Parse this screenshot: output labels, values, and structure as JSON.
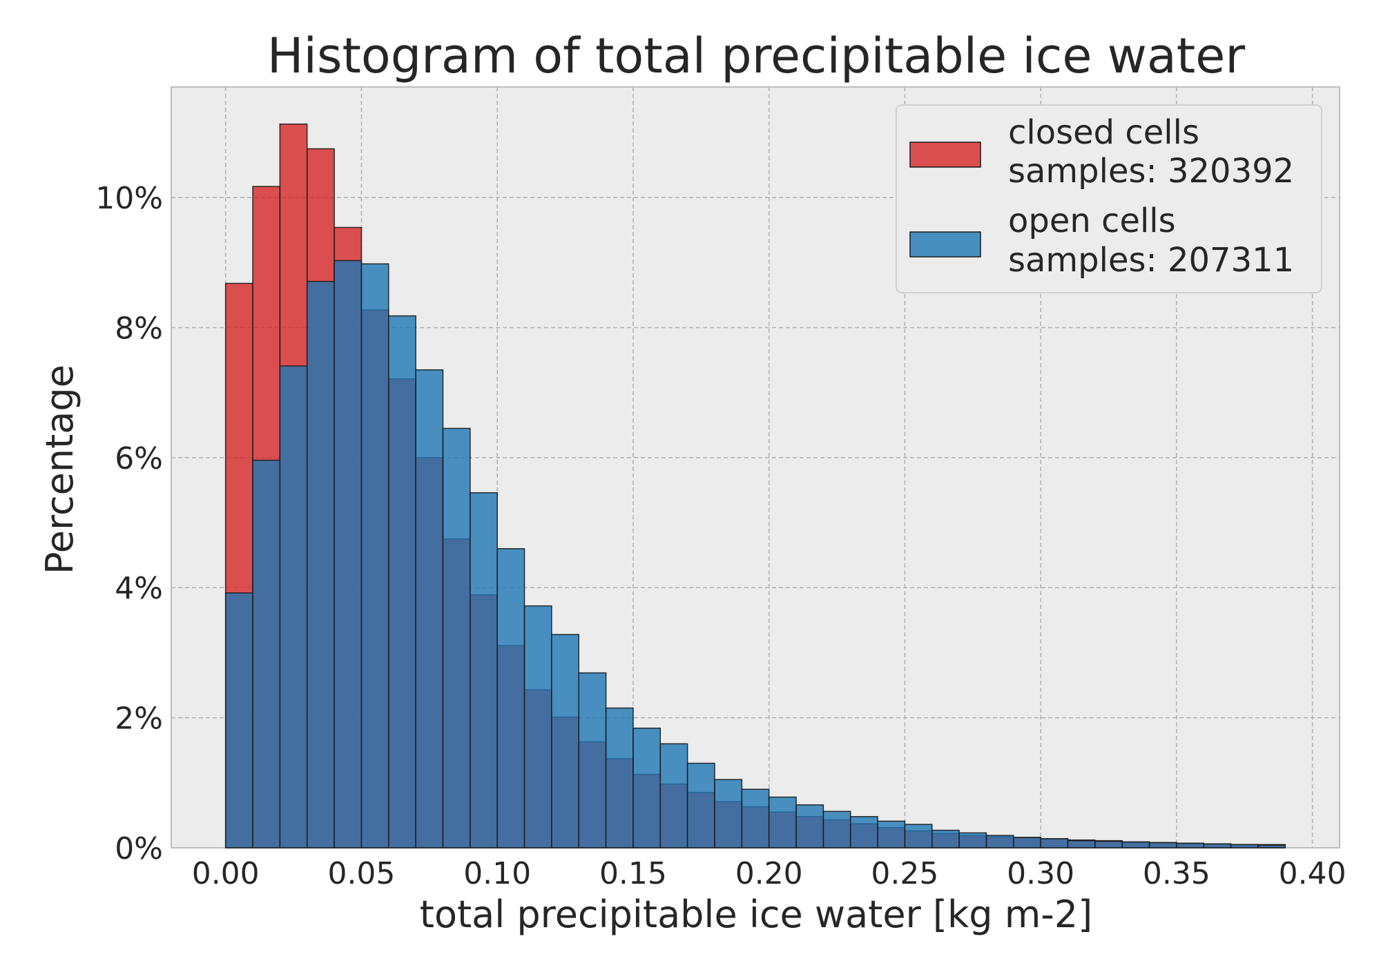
{
  "chart_data": {
    "type": "bar",
    "title": "Histogram of total precipitable ice water",
    "xlabel": "total precipitable ice water [kg m-2]",
    "ylabel": "Percentage",
    "xlim": [
      -0.02,
      0.41
    ],
    "ylim": [
      0,
      11.7
    ],
    "grid": true,
    "legend_position": "top-right",
    "bin_width": 0.01,
    "bins_start": [
      0.0,
      0.01,
      0.02,
      0.03,
      0.04,
      0.05,
      0.06,
      0.07,
      0.08,
      0.09,
      0.1,
      0.11,
      0.12,
      0.13,
      0.14,
      0.15,
      0.16,
      0.17,
      0.18,
      0.19,
      0.2,
      0.21,
      0.22,
      0.23,
      0.24,
      0.25,
      0.26,
      0.27,
      0.28,
      0.29,
      0.3,
      0.31,
      0.32,
      0.33,
      0.34,
      0.35,
      0.36,
      0.37,
      0.38
    ],
    "x_ticks": [
      {
        "value": 0.0,
        "label": "0.00"
      },
      {
        "value": 0.05,
        "label": "0.05"
      },
      {
        "value": 0.1,
        "label": "0.10"
      },
      {
        "value": 0.15,
        "label": "0.15"
      },
      {
        "value": 0.2,
        "label": "0.20"
      },
      {
        "value": 0.25,
        "label": "0.25"
      },
      {
        "value": 0.3,
        "label": "0.30"
      },
      {
        "value": 0.35,
        "label": "0.35"
      },
      {
        "value": 0.4,
        "label": "0.40"
      }
    ],
    "y_ticks": [
      {
        "value": 0,
        "label": "0%"
      },
      {
        "value": 2,
        "label": "2%"
      },
      {
        "value": 4,
        "label": "4%"
      },
      {
        "value": 6,
        "label": "6%"
      },
      {
        "value": 8,
        "label": "8%"
      },
      {
        "value": 10,
        "label": "10%"
      }
    ],
    "series": [
      {
        "name": "closed cells",
        "samples_label": "samples: 320392",
        "color": "#d62728",
        "values": [
          8.68,
          10.17,
          11.13,
          10.75,
          9.54,
          8.27,
          7.21,
          6.0,
          4.75,
          3.89,
          3.11,
          2.43,
          2.01,
          1.63,
          1.37,
          1.13,
          0.98,
          0.85,
          0.71,
          0.63,
          0.55,
          0.48,
          0.43,
          0.37,
          0.31,
          0.26,
          0.22,
          0.19,
          0.17,
          0.16,
          0.14,
          0.12,
          0.11,
          0.09,
          0.08,
          0.07,
          0.06,
          0.05,
          0.05
        ]
      },
      {
        "name": "open cells",
        "samples_label": "samples: 207311",
        "color": "#1f77b4",
        "values": [
          3.92,
          5.96,
          7.41,
          8.71,
          9.03,
          8.98,
          8.18,
          7.35,
          6.45,
          5.46,
          4.6,
          3.72,
          3.28,
          2.69,
          2.15,
          1.84,
          1.6,
          1.3,
          1.05,
          0.9,
          0.78,
          0.66,
          0.56,
          0.48,
          0.41,
          0.36,
          0.27,
          0.23,
          0.19,
          0.16,
          0.14,
          0.11,
          0.1,
          0.09,
          0.08,
          0.07,
          0.06,
          0.05,
          0.04
        ]
      }
    ]
  }
}
